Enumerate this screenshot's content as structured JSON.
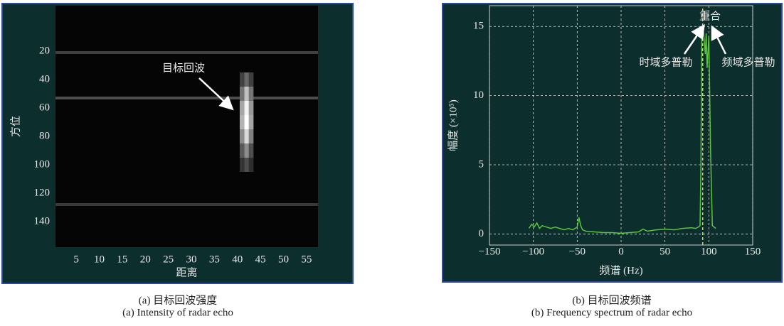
{
  "chart_data": [
    {
      "type": "heatmap",
      "xlabel": "距离",
      "ylabel": "方位",
      "xlim": [
        0.5,
        57.5
      ],
      "ylim": [
        158,
        -12
      ],
      "xticks": [
        5,
        10,
        15,
        20,
        25,
        30,
        35,
        40,
        45,
        50,
        55
      ],
      "yticks": [
        20,
        40,
        60,
        80,
        100,
        120,
        140
      ],
      "stripes": {
        "y": [
          21,
          53,
          128
        ],
        "values": [
          0.25,
          0.3,
          0.22
        ]
      },
      "cells": {
        "x": [
          41,
          42,
          43,
          41,
          42,
          43,
          41,
          42,
          43,
          41,
          42,
          43,
          41,
          42,
          43,
          41,
          42,
          43,
          41,
          42,
          43
        ],
        "y": [
          40,
          40,
          40,
          50,
          50,
          50,
          60,
          60,
          60,
          70,
          70,
          70,
          80,
          80,
          80,
          90,
          90,
          90,
          100,
          100,
          100
        ],
        "values": [
          0.25,
          0.4,
          0.25,
          0.45,
          0.75,
          0.45,
          0.65,
          0.95,
          0.6,
          0.7,
          1,
          0.65,
          0.55,
          0.85,
          0.5,
          0.35,
          0.55,
          0.3,
          0.2,
          0.3,
          0.18
        ]
      },
      "annotation": "目标回波",
      "caption": "(a) 目标回波强度",
      "caption_en": "(a) Intensity of radar echo"
    },
    {
      "type": "line",
      "xlabel": "频谱 (Hz)",
      "ylabel": "幅度 (×10⁵)",
      "xlim": [
        -150,
        150
      ],
      "ylim": [
        -0.8,
        16.5
      ],
      "xticks": [
        {
          "value": -150,
          "label": "−150"
        },
        {
          "value": -100,
          "label": "−100"
        },
        {
          "value": -50,
          "label": "−50"
        },
        0,
        50,
        100,
        150
      ],
      "yticks": [
        0,
        5,
        10,
        15
      ],
      "grid": true,
      "series": [
        {
          "color": "#5ac43c",
          "x": [
            -105,
            -102,
            -99,
            -96,
            -93,
            -90,
            -85,
            -80,
            -75,
            -70,
            -65,
            -60,
            -55,
            -50,
            -48,
            -46,
            -44,
            -40,
            -30,
            -20,
            -10,
            0,
            10,
            20,
            25,
            30,
            40,
            50,
            60,
            70,
            80,
            85,
            88,
            90,
            91,
            92,
            94,
            96,
            97,
            98,
            100,
            102,
            104,
            106,
            108
          ],
          "values": [
            0.4,
            0.7,
            0.5,
            0.8,
            0.4,
            0.6,
            0.5,
            0.4,
            0.5,
            0.4,
            0.3,
            0.4,
            0.3,
            0.5,
            1.2,
            0.6,
            0.3,
            0.2,
            0.15,
            0.1,
            0.1,
            0.05,
            0.1,
            0.15,
            0.35,
            0.2,
            0.3,
            0.35,
            0.3,
            0.4,
            0.45,
            0.4,
            0.5,
            0.6,
            5,
            14.8,
            14.6,
            13,
            14.5,
            12,
            14.3,
            6,
            0.6,
            0.5,
            0.4
          ]
        }
      ],
      "vline": {
        "x": 93,
        "color": "#e8d23a"
      },
      "annotations": [
        "重合",
        "时域多普勒",
        "频域多普勒"
      ],
      "caption": "(b) 目标回波频谱",
      "caption_en": "(b) Frequency spectrum of radar echo"
    }
  ]
}
